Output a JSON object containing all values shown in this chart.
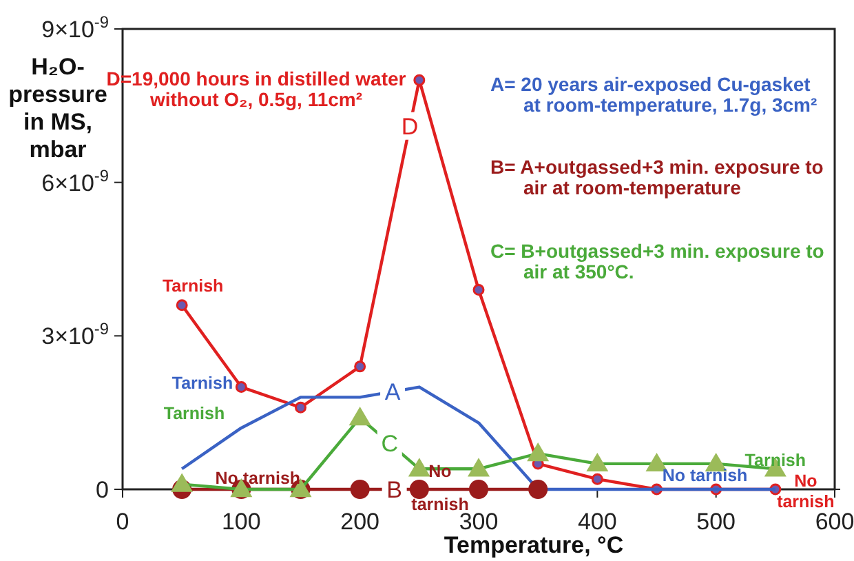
{
  "chart_data": {
    "type": "line",
    "xlabel": "Temperature, °C",
    "ylabel": "H₂O-\npressure\nin MS,\nmbar",
    "xlim": [
      0,
      600
    ],
    "xticks": [
      0,
      100,
      200,
      300,
      400,
      500,
      600
    ],
    "ylim": [
      0,
      9e-09
    ],
    "yticks": [
      {
        "value": 0,
        "label": "0"
      },
      {
        "value": 3e-09,
        "label": "3×10$^{-9}$"
      },
      {
        "value": 6e-09,
        "label": "6×10$^{-9}$"
      },
      {
        "value": 9e-09,
        "label": "9×10$^{-9}$"
      }
    ],
    "grid": false,
    "legend": false,
    "x": [
      50,
      100,
      150,
      200,
      250,
      300,
      350,
      400,
      450,
      500,
      550
    ],
    "series": [
      {
        "name": "D",
        "color": "#e02020",
        "marker": "circle",
        "values": [
          3.6e-09,
          2e-09,
          1.6e-09,
          2.4e-09,
          8e-09,
          3.9e-09,
          5e-10,
          2e-10,
          0,
          0,
          0
        ]
      },
      {
        "name": "A",
        "color": "#3a62c4",
        "marker": "none",
        "values": [
          4e-10,
          1.2e-09,
          1.8e-09,
          1.8e-09,
          2e-09,
          1.3e-09,
          0,
          0,
          0,
          0,
          0
        ]
      },
      {
        "name": "B",
        "color": "#9b1c1c",
        "marker": "circle",
        "x": [
          50,
          100,
          150,
          200,
          250,
          300,
          350
        ],
        "values": [
          0,
          0,
          0,
          0,
          0,
          0,
          0
        ]
      },
      {
        "name": "C",
        "color": "#4aaa3a",
        "marker": "triangle",
        "values": [
          1e-10,
          0,
          0,
          1.4e-09,
          4e-10,
          4e-10,
          7e-10,
          5e-10,
          5e-10,
          5e-10,
          4e-10
        ]
      }
    ],
    "annotations": [
      "D=19,000 hours in distilled water\nwithout O₂, 0.5g, 11cm²",
      "A= 20 years air-exposed Cu-gasket\nat room-temperature, 1.7g, 3cm²",
      "B= A+outgassed+3 min. exposure to\nair at room-temperature",
      "C= B+outgassed+3 min. exposure to\nair at 350°C.",
      {
        "text": "Tarnish",
        "x": 50,
        "y": 3.6e-09
      },
      "Tarnish",
      "Tarnish",
      {
        "text": "No tarnish",
        "x": 100,
        "y": 0
      },
      {
        "text": "No\ntarnish",
        "x": 300,
        "y": 0
      },
      {
        "text": "No tarnish",
        "x": 450,
        "y": 0
      },
      {
        "text": "No\ntarnish",
        "x": 550,
        "y": 0
      },
      {
        "text": "Tarnish",
        "x": 550,
        "y": 4e-10
      }
    ]
  }
}
